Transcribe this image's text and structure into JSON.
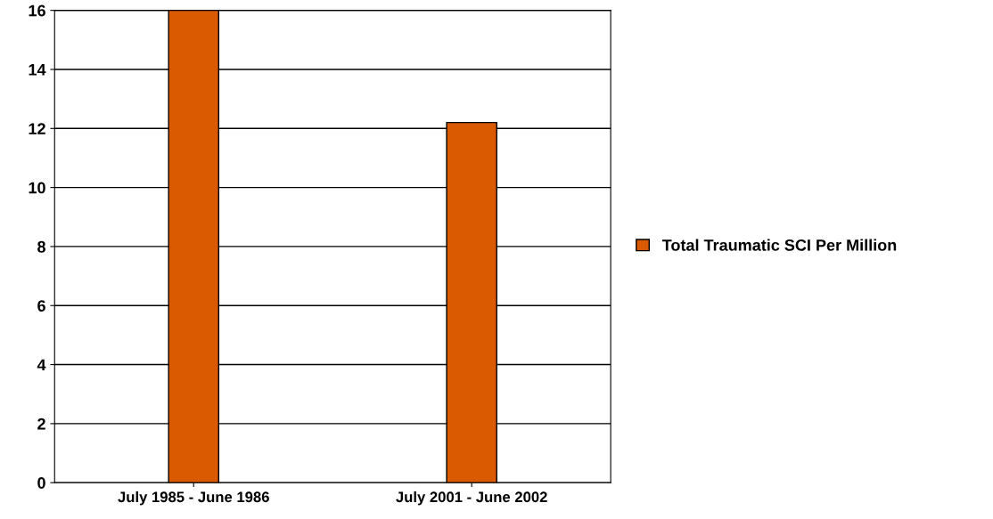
{
  "chart_data": {
    "type": "bar",
    "categories": [
      "July 1985 - June 1986",
      "July 2001 - June 2002"
    ],
    "series": [
      {
        "name": "Total Traumatic SCI Per Million",
        "color": "#d95a00",
        "values": [
          16.0,
          12.2
        ]
      }
    ],
    "ylim": [
      0,
      16
    ],
    "yticks": [
      0,
      2,
      4,
      6,
      8,
      10,
      12,
      14,
      16
    ],
    "grid": "y",
    "legend": "right"
  }
}
